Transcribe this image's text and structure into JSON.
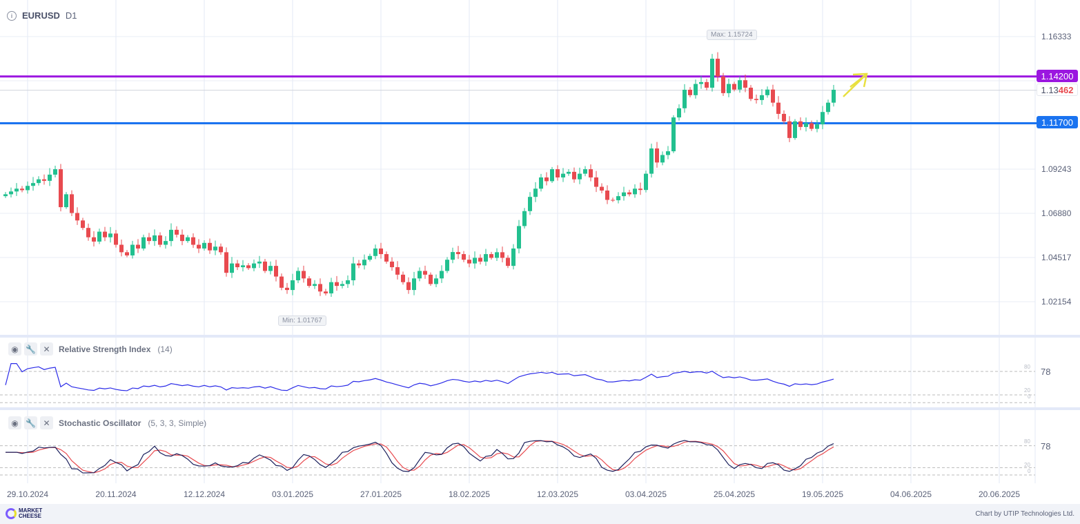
{
  "header": {
    "symbol": "EURUSD",
    "timeframe": "D1"
  },
  "price_axis": {
    "labels": [
      "1.16333",
      "1.09243",
      "1.06880",
      "1.04517",
      "1.02154"
    ]
  },
  "levels": {
    "resistance": {
      "label": "1.14200",
      "value": 1.142,
      "color": "#9b16e0"
    },
    "support": {
      "label": "1.11700",
      "value": 1.117,
      "color": "#1a73f0"
    },
    "current": {
      "label_a": "1.13",
      "label_b": "462",
      "value": 1.13462
    }
  },
  "max_label": "Max: 1.15724",
  "min_label": "Min: 1.01767",
  "rsi": {
    "name": "Relative Strength Index",
    "params": "(14)",
    "value_label": "78",
    "lvl80": "80",
    "lvl20": "20",
    "lvl0": "0"
  },
  "stoch": {
    "name": "Stochastic Oscillator",
    "params": "(5, 3, 3, Simple)",
    "value_label": "78",
    "lvl80": "80",
    "lvl20": "20",
    "lvl0": "0"
  },
  "dates": [
    "29.10.2024",
    "20.11.2024",
    "12.12.2024",
    "03.01.2025",
    "27.01.2025",
    "18.02.2025",
    "12.03.2025",
    "03.04.2025",
    "25.04.2025",
    "19.05.2025",
    "04.06.2025",
    "20.06.2025"
  ],
  "footer": {
    "brand_line1": "MARKET",
    "brand_line2": "CHEESE",
    "credit": "Chart by UTIP Technologies Ltd."
  },
  "colors": {
    "up": "#22c08f",
    "down": "#e84a4f",
    "rsi": "#2a2ae8",
    "stoch_k": "#1a1f5c",
    "stoch_d": "#e84a4f"
  },
  "chart_data": {
    "type": "candlestick",
    "title": "EURUSD D1",
    "ylim": [
      1.005,
      1.172
    ],
    "first_open": 1.078,
    "closes": [
      1.079,
      1.0805,
      1.082,
      1.0812,
      1.0835,
      1.085,
      1.087,
      1.0862,
      1.0895,
      1.0924,
      1.0721,
      1.079,
      1.069,
      1.065,
      1.061,
      1.056,
      1.0537,
      1.059,
      1.056,
      1.058,
      1.052,
      1.048,
      1.0463,
      1.052,
      1.05,
      1.056,
      1.054,
      1.057,
      1.052,
      1.054,
      1.06,
      1.0574,
      1.054,
      1.056,
      1.052,
      1.05,
      1.053,
      1.049,
      1.051,
      1.048,
      1.037,
      1.042,
      1.04,
      1.041,
      1.0395,
      1.042,
      1.043,
      1.038,
      1.0407,
      1.035,
      1.029,
      1.0278,
      1.033,
      1.038,
      1.034,
      1.03,
      1.031,
      1.027,
      1.026,
      1.032,
      1.03,
      1.031,
      1.033,
      1.042,
      1.041,
      1.044,
      1.046,
      1.05,
      1.047,
      1.043,
      1.04,
      1.036,
      1.032,
      1.0278,
      1.034,
      1.038,
      1.036,
      1.031,
      1.034,
      1.038,
      1.044,
      1.0481,
      1.047,
      1.044,
      1.042,
      1.045,
      1.043,
      1.047,
      1.045,
      1.048,
      1.045,
      1.0407,
      1.05,
      1.062,
      1.07,
      1.0776,
      1.082,
      1.088,
      1.086,
      1.0924,
      1.088,
      1.09,
      1.091,
      1.087,
      1.09,
      1.0924,
      1.088,
      1.083,
      1.081,
      1.076,
      1.0758,
      1.078,
      1.08,
      1.079,
      1.082,
      1.0813,
      1.09,
      1.1035,
      1.096,
      1.1,
      1.102,
      1.1201,
      1.125,
      1.1349,
      1.132,
      1.138,
      1.139,
      1.136,
      1.1515,
      1.142,
      1.1331,
      1.138,
      1.135,
      1.14,
      1.136,
      1.13,
      1.1294,
      1.132,
      1.135,
      1.128,
      1.122,
      1.118,
      1.1091,
      1.118,
      1.115,
      1.117,
      1.114,
      1.1164,
      1.123,
      1.128,
      1.1349
    ]
  }
}
